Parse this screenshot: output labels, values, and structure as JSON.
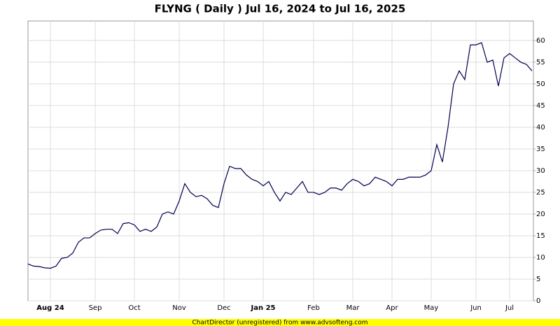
{
  "chart_data": {
    "type": "line",
    "title": "FLYNG ( Daily ) Jul 16, 2024 to Jul 16, 2025",
    "footer": "ChartDirector (unregistered) from www.advsofteng.com",
    "categories": [
      null,
      null,
      null,
      null,
      "Aug 24",
      null,
      null,
      null,
      null,
      null,
      null,
      null,
      "Sep",
      null,
      null,
      null,
      null,
      null,
      null,
      "Oct",
      null,
      null,
      null,
      null,
      null,
      null,
      null,
      "Nov",
      null,
      null,
      null,
      null,
      null,
      null,
      null,
      "Dec",
      null,
      null,
      null,
      null,
      null,
      null,
      "Jan 25",
      null,
      null,
      null,
      null,
      null,
      null,
      null,
      null,
      "Feb",
      null,
      null,
      null,
      null,
      null,
      null,
      "Mar",
      null,
      null,
      null,
      null,
      null,
      null,
      "Apr",
      null,
      null,
      null,
      null,
      null,
      null,
      "May",
      null,
      null,
      null,
      null,
      null,
      null,
      null,
      "Jun",
      null,
      null,
      null,
      null,
      null,
      "Jul",
      null,
      null,
      null,
      null
    ],
    "series": [
      {
        "name": "FLYNG",
        "color": "#000050",
        "values": [
          8.5,
          8.0,
          7.9,
          7.6,
          7.5,
          8.0,
          9.8,
          10.0,
          11,
          13.5,
          14.5,
          14.5,
          15.5,
          16.3,
          16.5,
          16.5,
          15.5,
          17.8,
          18,
          17.5,
          16,
          16.5,
          16,
          17,
          20,
          20.5,
          20,
          23,
          27,
          25,
          24,
          24.3,
          23.5,
          22,
          21.5,
          27,
          31,
          30.5,
          30.5,
          29,
          28,
          27.5,
          26.5,
          27.5,
          25,
          23,
          25,
          24.5,
          26,
          27.5,
          25,
          25,
          24.5,
          25,
          26,
          26,
          25.5,
          27,
          28,
          27.5,
          26.5,
          27,
          28.5,
          28,
          27.5,
          26.5,
          28,
          28,
          28.5,
          28.5,
          28.5,
          29,
          30,
          36,
          32,
          40,
          50,
          53,
          51,
          59,
          59,
          59.5,
          55,
          55.5,
          49.5,
          56,
          57,
          56,
          55,
          54.5,
          53
        ]
      }
    ],
    "ylim": [
      0,
      64.5
    ],
    "yticks": [
      0,
      5,
      10,
      15,
      20,
      25,
      30,
      35,
      40,
      45,
      50,
      55,
      60
    ],
    "grid": true
  }
}
